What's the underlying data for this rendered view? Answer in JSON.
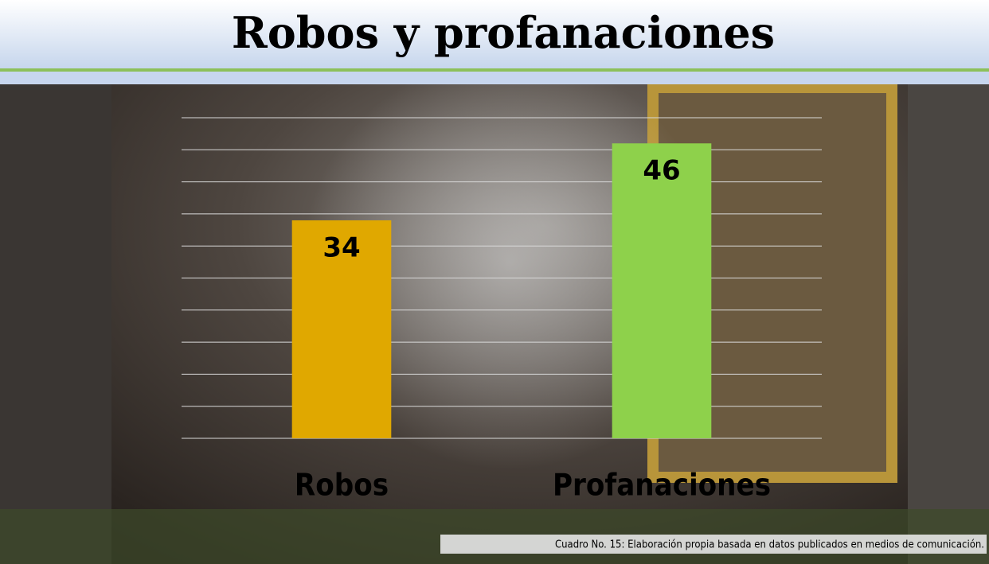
{
  "chart_data": {
    "type": "bar",
    "title": "Robos y profanaciones",
    "categories": [
      "Robos",
      "Profanaciones"
    ],
    "series": [
      {
        "name": "Robos y profanaciones",
        "values": [
          34,
          46
        ],
        "colors": [
          "#e0a800",
          "#8ed14b"
        ]
      }
    ],
    "ylim": [
      0,
      50
    ],
    "yticks": [
      0,
      5,
      10,
      15,
      20,
      25,
      30,
      35,
      40,
      45,
      50
    ],
    "grid": true,
    "source": "Cuadro No. 15: Elaboración propia basada en datos publicados en medios de comunicación."
  }
}
